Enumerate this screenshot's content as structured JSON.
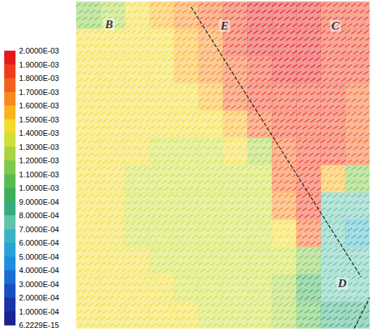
{
  "chart_data": {
    "type": "vector_field",
    "xlim": [
      0,
      12
    ],
    "ylim": [
      0,
      12
    ],
    "tick_labels": false,
    "grid": false,
    "cells": {
      "magnitude": [
        [
          0.00115,
          0.00125,
          0.00145,
          0.00155,
          0.00165,
          0.00175,
          0.00185,
          0.00195,
          0.00195,
          0.00195,
          0.0019,
          0.00185
        ],
        [
          0.00145,
          0.00145,
          0.00145,
          0.0015,
          0.0016,
          0.0017,
          0.00185,
          0.00195,
          0.00195,
          0.00195,
          0.0019,
          0.00185
        ],
        [
          0.00145,
          0.00145,
          0.00145,
          0.00145,
          0.00155,
          0.00165,
          0.0018,
          0.0019,
          0.00195,
          0.00195,
          0.0019,
          0.00185
        ],
        [
          0.00145,
          0.00145,
          0.00145,
          0.00145,
          0.0015,
          0.00155,
          0.00175,
          0.00185,
          0.0019,
          0.0019,
          0.00185,
          0.0018
        ],
        [
          0.00145,
          0.00145,
          0.00145,
          0.00145,
          0.00145,
          0.00145,
          0.00155,
          0.00175,
          0.0019,
          0.0019,
          0.00185,
          0.0018
        ],
        [
          0.00145,
          0.00145,
          0.00145,
          0.0014,
          0.0014,
          0.0014,
          0.00145,
          0.00125,
          0.0018,
          0.0019,
          0.00185,
          0.0018
        ],
        [
          0.00145,
          0.00145,
          0.0014,
          0.00135,
          0.00135,
          0.00135,
          0.00135,
          0.0014,
          0.00175,
          0.00185,
          0.0016,
          0.00115
        ],
        [
          0.00145,
          0.00145,
          0.0014,
          0.00135,
          0.00135,
          0.00135,
          0.00135,
          0.00135,
          0.0017,
          0.00185,
          0.00075,
          0.00075
        ],
        [
          0.00145,
          0.00145,
          0.0014,
          0.0014,
          0.00135,
          0.00135,
          0.00135,
          0.00135,
          0.00145,
          0.0018,
          0.00075,
          0.0007
        ],
        [
          0.00145,
          0.00145,
          0.00145,
          0.0014,
          0.0014,
          0.00135,
          0.00135,
          0.00135,
          0.00135,
          0.00115,
          0.00075,
          0.00075
        ],
        [
          0.00145,
          0.00145,
          0.00145,
          0.00145,
          0.0014,
          0.0014,
          0.00135,
          0.00135,
          0.00125,
          0.00095,
          0.00075,
          0.00075
        ],
        [
          0.00145,
          0.00145,
          0.00145,
          0.00145,
          0.00145,
          0.0014,
          0.00135,
          0.00135,
          0.00125,
          0.00105,
          0.00085,
          0.00085
        ]
      ]
    },
    "colorbar": {
      "range": [
        6.2229e-15,
        0.002
      ],
      "ticks": [
        {
          "value": 0.002,
          "label": "2.0000E-03"
        },
        {
          "value": 0.0019,
          "label": "1.9000E-03"
        },
        {
          "value": 0.0018,
          "label": "1.8000E-03"
        },
        {
          "value": 0.0017,
          "label": "1.7000E-03"
        },
        {
          "value": 0.0016,
          "label": "1.6000E-03"
        },
        {
          "value": 0.0015,
          "label": "1.5000E-03"
        },
        {
          "value": 0.0014,
          "label": "1.4000E-03"
        },
        {
          "value": 0.0013,
          "label": "1.3000E-03"
        },
        {
          "value": 0.0012,
          "label": "1.2000E-03"
        },
        {
          "value": 0.0011,
          "label": "1.1000E-03"
        },
        {
          "value": 0.001,
          "label": "1.0000E-03"
        },
        {
          "value": 0.0009,
          "label": "9.0000E-04"
        },
        {
          "value": 0.0008,
          "label": "8.0000E-04"
        },
        {
          "value": 0.0007,
          "label": "7.0000E-04"
        },
        {
          "value": 0.0006,
          "label": "6.0000E-04"
        },
        {
          "value": 0.0005,
          "label": "5.0000E-04"
        },
        {
          "value": 0.0004,
          "label": "4.0000E-04"
        },
        {
          "value": 0.0003,
          "label": "3.0000E-04"
        },
        {
          "value": 0.0002,
          "label": "2.0000E-04"
        },
        {
          "value": 0.0001,
          "label": "1.0000E-04"
        },
        {
          "value": 6.2229e-15,
          "label": "6.2229E-15"
        }
      ],
      "colors": [
        "#e31a1c",
        "#ee3b1c",
        "#f4601e",
        "#f78a1e",
        "#f9b41c",
        "#f2dc2c",
        "#cfe03a",
        "#a8d444",
        "#80c84a",
        "#58bc4e",
        "#3daf5a",
        "#36ab7e",
        "#62c4ad",
        "#3bb3c4",
        "#27a3d6",
        "#1c8fe0",
        "#1a6ed2",
        "#1a4fc0",
        "#1b35a6",
        "#1c2390"
      ]
    },
    "annotations": [
      {
        "text": "B",
        "x": 1.35,
        "y": 0.84
      },
      {
        "text": "E",
        "x": 6.07,
        "y": 0.9
      },
      {
        "text": "C",
        "x": 10.6,
        "y": 0.9
      },
      {
        "text": "D",
        "x": 10.88,
        "y": 10.34
      }
    ],
    "lines": [
      {
        "line_style": "dashed",
        "x": [
          4.7,
          11.66
        ],
        "y": [
          0.2,
          10.11
        ]
      },
      {
        "line_style": "dashed",
        "x": [
          11.37,
          12
        ],
        "y": [
          12,
          10.87
        ]
      }
    ]
  }
}
